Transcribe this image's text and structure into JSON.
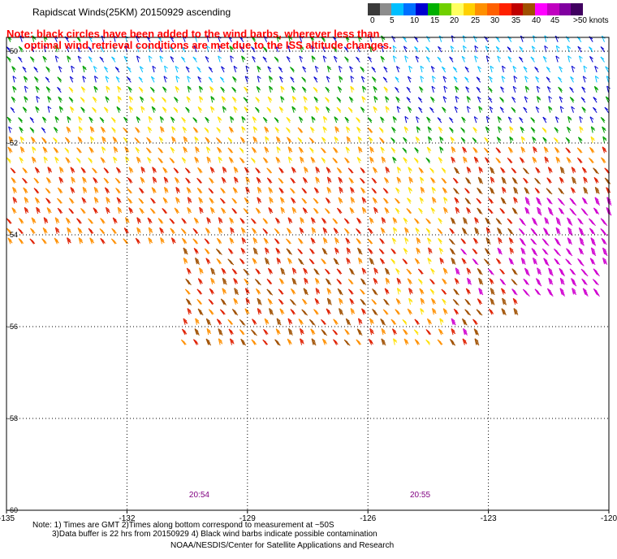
{
  "header": {
    "title": "Rapidscat Winds(25KM) 20150929 ascending",
    "note_line1": "Note: black circles have been added to the wind barbs, wherever less than",
    "note_line2": "      optimal wind retrieval conditions are met due to the ISS altitude changes."
  },
  "colorbar": {
    "labels": [
      "0",
      "5",
      "10",
      "15",
      "20",
      "25",
      "30",
      "35",
      "40",
      "45",
      ">50 knots"
    ],
    "colors": [
      "#3a3a3a",
      "#8c8c8c",
      "#00bfff",
      "#0070ff",
      "#0000d0",
      "#00b000",
      "#70d000",
      "#ffff60",
      "#ffd000",
      "#ff9000",
      "#ff6000",
      "#ff2000",
      "#c00000",
      "#a05000",
      "#ff00ff",
      "#c000c0",
      "#8000a0",
      "#400060"
    ]
  },
  "chart_data": {
    "type": "wind-barb-map",
    "title": "Rapidscat Winds(25KM) 20150929 ascending",
    "x_ticks": [
      "-135",
      "-132",
      "-129",
      "-126",
      "-123",
      "-120"
    ],
    "y_ticks": [
      "-50",
      "-52",
      "-54",
      "-56",
      "-58",
      "-60"
    ],
    "xlim": [
      -135,
      -120
    ],
    "ylim": [
      -60,
      -49.7
    ],
    "grid": true,
    "time_labels": [
      {
        "text": "20:54",
        "lon": -130.2
      },
      {
        "text": "20:55",
        "lon": -124.7
      }
    ],
    "speed_regions": [
      {
        "lat_band": [
          -50,
          -52
        ],
        "lon_range": [
          -135,
          -120
        ],
        "typical_speed_knots": 20
      },
      {
        "lat_band": [
          -52,
          -54
        ],
        "lon_range": [
          -135,
          -120
        ],
        "typical_speed_knots": 28
      },
      {
        "lat_band": [
          -54,
          -56.5
        ],
        "lon_range": [
          -130.5,
          -121
        ],
        "typical_speed_knots": 33
      },
      {
        "lat_band": [
          -53.5,
          -56
        ],
        "lon_range": [
          -122.5,
          -120
        ],
        "typical_speed_knots": 45
      }
    ]
  },
  "footer": {
    "line1": "Note: 1) Times are GMT 2)Times along bottom correspond to measurement at ~50S",
    "line2": "3)Data buffer is 22 hrs from 20150929 4) Black wind barbs indicate possible contamination",
    "line3": "NOAA/NESDIS/Center for Satellite Applications and Research"
  }
}
